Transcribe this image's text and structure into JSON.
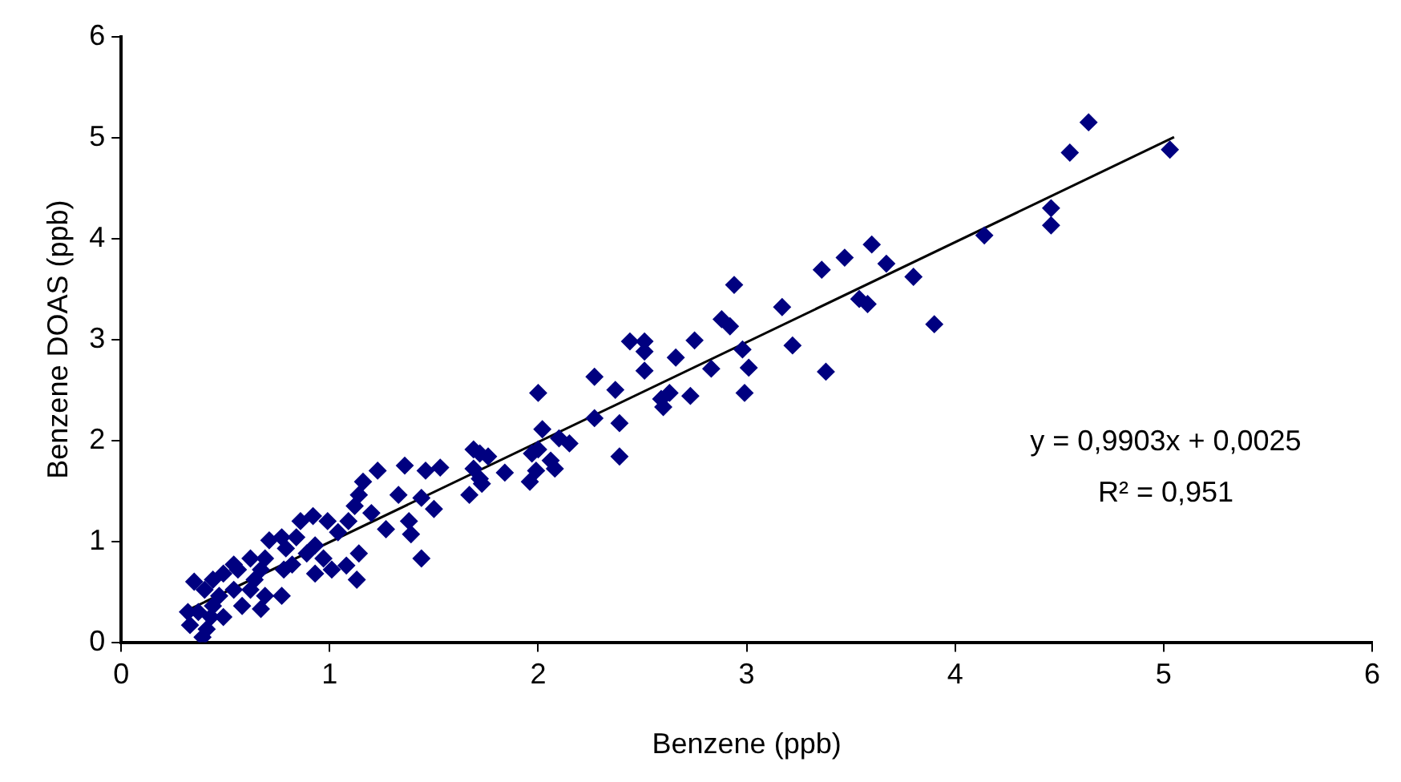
{
  "chart_data": {
    "type": "scatter",
    "xlabel": "Benzene (ppb)",
    "ylabel": "Benzene DOAS (ppb)",
    "xlim": [
      0,
      6
    ],
    "ylim": [
      0,
      6
    ],
    "xticks": [
      0,
      1,
      2,
      3,
      4,
      5,
      6
    ],
    "yticks": [
      0,
      1,
      2,
      3,
      4,
      5,
      6
    ],
    "grid": false,
    "legend": false,
    "marker": "diamond",
    "annotations": [
      "y = 0,9903x + 0,0025",
      "R² = 0,951"
    ],
    "series": [
      {
        "color": "#000080",
        "x": [
          4.64,
          4.55,
          5.03,
          4.46,
          4.46,
          4.14,
          3.8,
          3.9,
          3.67,
          3.6,
          3.54,
          3.58,
          3.47,
          3.36,
          2.94,
          3.17,
          2.88,
          2.92,
          2.75,
          3.22,
          2.98,
          3.01,
          3.38,
          2.83,
          2.99,
          2.66,
          2.44,
          2.51,
          2.51,
          2.51,
          2.73,
          2.63,
          2.59,
          2.6,
          2.37,
          2.27,
          2.39,
          2.39,
          2.27,
          2.0,
          2.02,
          2.1,
          2.15,
          1.97,
          2.0,
          2.06,
          2.08,
          1.96,
          1.99,
          1.84,
          1.76,
          1.72,
          1.69,
          1.73,
          1.67,
          1.69,
          1.72,
          1.23,
          1.36,
          1.46,
          1.53,
          1.16,
          1.33,
          1.44,
          1.5,
          1.38,
          1.44,
          1.39,
          1.27,
          1.2,
          1.12,
          1.14,
          1.09,
          1.04,
          1.08,
          1.13,
          0.99,
          0.92,
          0.86,
          0.84,
          0.93,
          1.01,
          0.93,
          0.79,
          0.71,
          0.69,
          0.78,
          0.77,
          0.69,
          0.67,
          0.62,
          0.56,
          0.54,
          0.58,
          0.54,
          0.49,
          0.44,
          0.47,
          0.44,
          0.49,
          0.43,
          0.39,
          0.41,
          0.35,
          0.4,
          0.32,
          0.33,
          0.37,
          0.77,
          0.67,
          0.64,
          0.82,
          0.89,
          0.97,
          0.62,
          1.14
        ],
        "values": [
          5.15,
          4.85,
          4.88,
          4.3,
          4.13,
          4.03,
          3.62,
          3.15,
          3.75,
          3.94,
          3.4,
          3.35,
          3.81,
          3.69,
          3.54,
          3.32,
          3.2,
          3.13,
          2.99,
          2.94,
          2.9,
          2.72,
          2.68,
          2.71,
          2.47,
          2.82,
          2.98,
          2.98,
          2.88,
          2.69,
          2.44,
          2.47,
          2.41,
          2.33,
          2.5,
          2.63,
          2.17,
          1.84,
          2.22,
          2.47,
          2.11,
          2.02,
          1.97,
          1.87,
          1.91,
          1.8,
          1.72,
          1.59,
          1.7,
          1.68,
          1.84,
          1.87,
          1.72,
          1.57,
          1.46,
          1.91,
          1.62,
          1.7,
          1.75,
          1.7,
          1.73,
          1.59,
          1.46,
          1.43,
          1.32,
          1.2,
          0.83,
          1.07,
          1.12,
          1.28,
          1.35,
          0.88,
          1.2,
          1.09,
          0.76,
          0.62,
          1.2,
          1.25,
          1.2,
          1.04,
          0.96,
          0.72,
          0.68,
          0.93,
          1.01,
          0.83,
          0.72,
          0.46,
          0.46,
          0.33,
          0.52,
          0.72,
          0.77,
          0.36,
          0.52,
          0.68,
          0.62,
          0.46,
          0.36,
          0.25,
          0.25,
          0.05,
          0.13,
          0.6,
          0.52,
          0.3,
          0.17,
          0.3,
          1.04,
          0.72,
          0.62,
          0.77,
          0.88,
          0.83,
          0.83,
          1.46
        ]
      },
      {
        "type": "line",
        "color": "#000000",
        "marker": "none",
        "x": [
          0.33,
          5.05
        ],
        "values": [
          0.329,
          5.003
        ]
      }
    ]
  }
}
